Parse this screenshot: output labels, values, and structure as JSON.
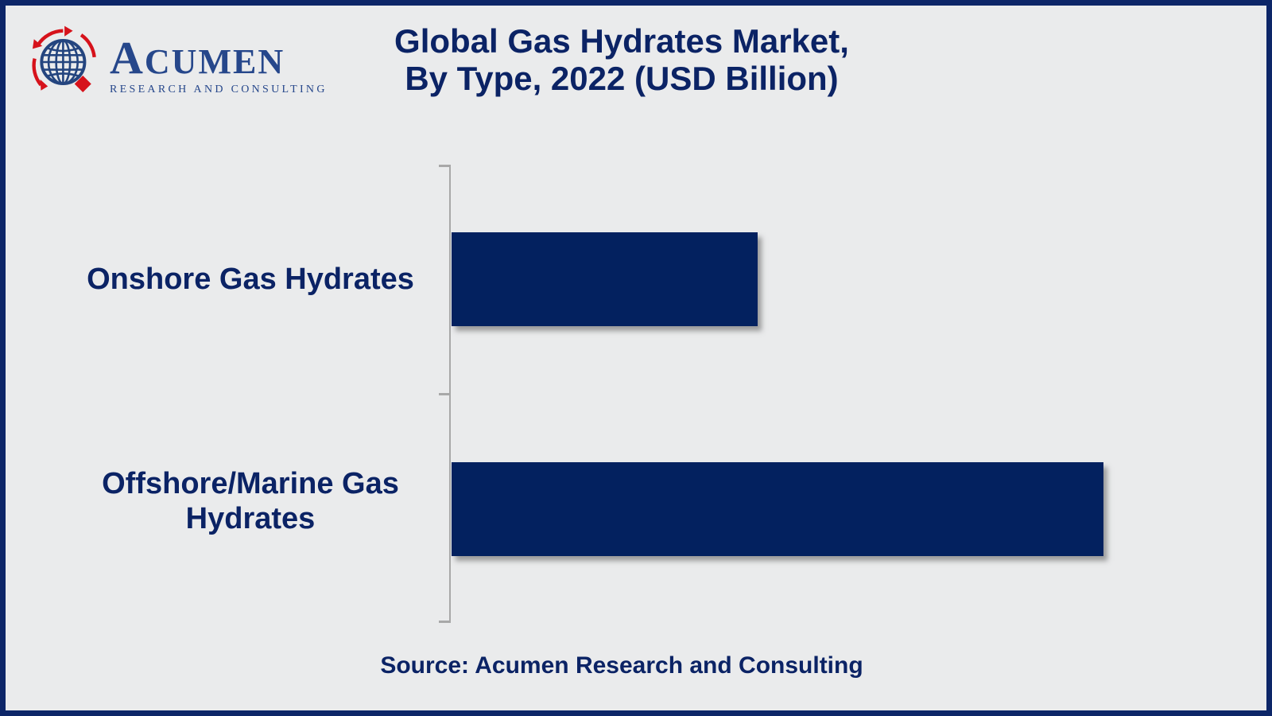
{
  "brand": {
    "name_initial": "A",
    "name_rest": "CUMEN",
    "tagline": "RESEARCH AND CONSULTING"
  },
  "header": {
    "title_line1": "Global Gas Hydrates Market,",
    "title_line2": "By Type, 2022 (USD Billion)"
  },
  "footer": {
    "source_text": "Source: Acumen Research and Consulting"
  },
  "colors": {
    "navy_text": "#0b2365",
    "bar_fill": "#03215f",
    "frame_border": "#0d2668",
    "background": "#eaebec",
    "axis_gray": "#a8a8a8",
    "logo_blue": "#26478b",
    "logo_red": "#d6121b"
  },
  "chart_data": {
    "type": "bar",
    "orientation": "horizontal",
    "title": "Global Gas Hydrates Market, By Type, 2022 (USD Billion)",
    "categories": [
      "Onshore Gas Hydrates",
      "Offshore/Marine Gas Hydrates"
    ],
    "values": [
      47,
      100
    ],
    "values_note": "No numeric axis or data labels shown; values are relative bar lengths as % of the longest bar",
    "xlabel": "",
    "ylabel": "",
    "axis_ticks_shown": false,
    "grid": false,
    "legend": false,
    "source": "Source: Acumen Research and Consulting"
  }
}
